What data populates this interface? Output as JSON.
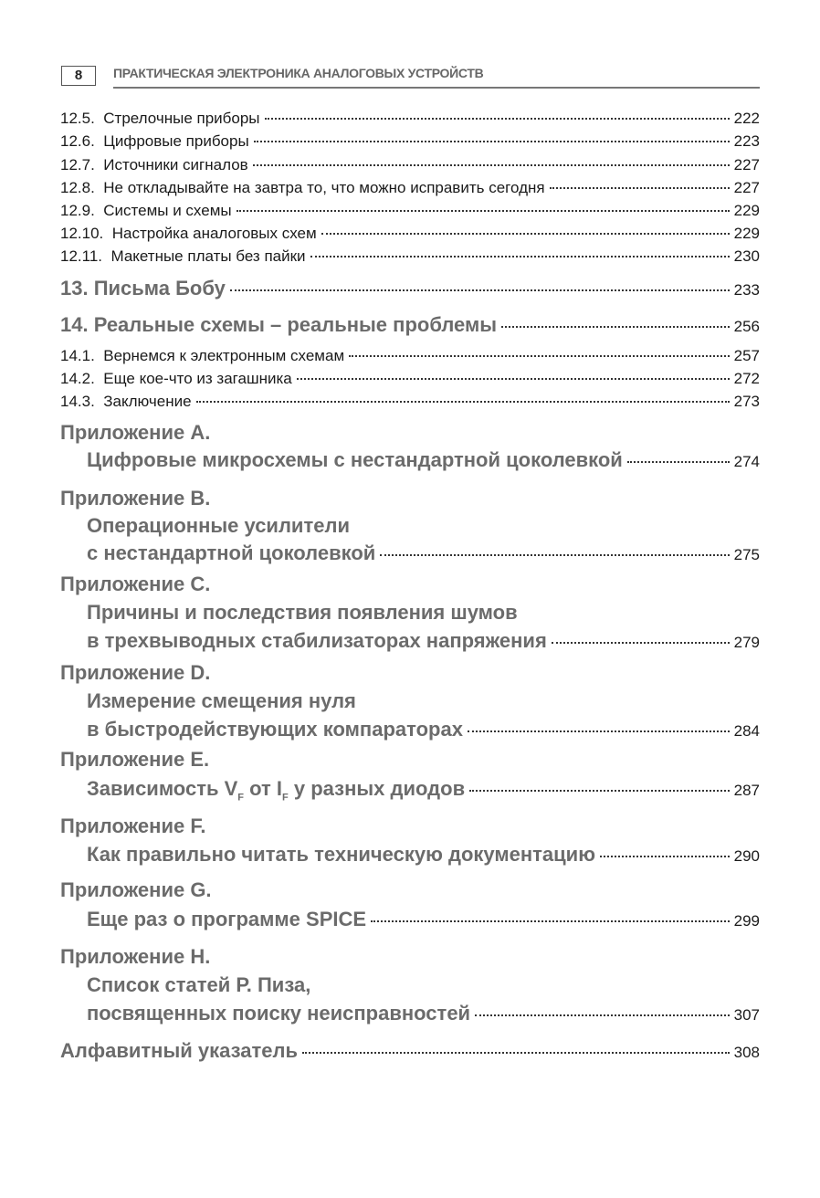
{
  "header": {
    "page_number": "8",
    "running_title": "ПРАКТИЧЕСКАЯ ЭЛЕКТРОНИКА АНАЛОГОВЫХ УСТРОЙСТВ"
  },
  "toc": {
    "s12_5": {
      "num": "12.5.",
      "title": "Стрелочные приборы",
      "page": "222"
    },
    "s12_6": {
      "num": "12.6.",
      "title": "Цифровые приборы",
      "page": "223"
    },
    "s12_7": {
      "num": "12.7.",
      "title": "Источники сигналов",
      "page": "227"
    },
    "s12_8": {
      "num": "12.8.",
      "title": "Не откладывайте на завтра то, что можно исправить сегодня",
      "page": "227"
    },
    "s12_9": {
      "num": "12.9.",
      "title": "Системы и схемы",
      "page": "229"
    },
    "s12_10": {
      "num": "12.10.",
      "title": "Настройка аналоговых схем",
      "page": "229"
    },
    "s12_11": {
      "num": "12.11.",
      "title": "Макетные платы без пайки",
      "page": "230"
    },
    "ch13": {
      "title": "13. Письма Бобу",
      "page": "233"
    },
    "ch14": {
      "title": "14. Реальные схемы – реальные проблемы",
      "page": "256"
    },
    "s14_1": {
      "num": "14.1.",
      "title": "Вернемся к электронным схемам",
      "page": "257"
    },
    "s14_2": {
      "num": "14.2.",
      "title": "Еще кое-что из загашника",
      "page": "272"
    },
    "s14_3": {
      "num": "14.3.",
      "title": "Заключение",
      "page": "273"
    },
    "appA": {
      "label": "Приложение A.",
      "lines": [
        "Цифровые микросхемы с нестандартной цоколевкой"
      ],
      "page": "274"
    },
    "appB": {
      "label": "Приложение B.",
      "lines": [
        "Операционные усилители",
        "с нестандартной цоколевкой"
      ],
      "page": "275"
    },
    "appC": {
      "label": "Приложение C.",
      "lines": [
        "Причины и последствия появления шумов",
        "в трехвыводных стабилизаторах напряжения"
      ],
      "page": "279"
    },
    "appD": {
      "label": "Приложение D.",
      "lines": [
        "Измерение смещения нуля",
        "в быстродействующих компараторах"
      ],
      "page": "284"
    },
    "appE": {
      "label": "Приложение E.",
      "parts": [
        "Зависимость V",
        "F",
        " от I",
        "F",
        " у разных диодов"
      ],
      "page": "287"
    },
    "appF": {
      "label": "Приложение F.",
      "lines": [
        "Как правильно читать техническую документацию"
      ],
      "page": "290"
    },
    "appG": {
      "label": "Приложение G.",
      "lines": [
        "Еще раз о программе SPICE"
      ],
      "page": "299"
    },
    "appH": {
      "label": "Приложение H.",
      "lines": [
        "Список статей Р. Пиза,",
        "посвященных поиску неисправностей"
      ],
      "page": "307"
    },
    "index": {
      "title": "Алфавитный указатель",
      "page": "308"
    }
  }
}
